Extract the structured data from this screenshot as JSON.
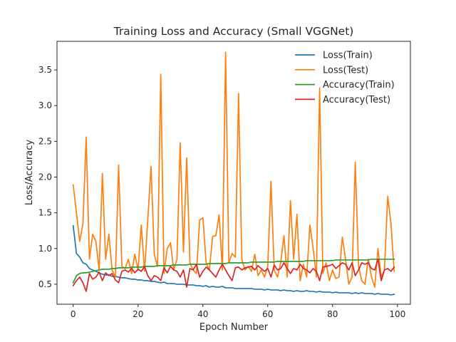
{
  "chart_data": {
    "type": "line",
    "title": "Training Loss and Accuracy (Small VGGNet)",
    "xlabel": "Epoch Number",
    "ylabel": "Loss/Accuracy",
    "xlim": [
      -5,
      104
    ],
    "ylim": [
      0.22,
      3.9
    ],
    "xticks": [
      0,
      20,
      40,
      60,
      80,
      100
    ],
    "yticks": [
      0.5,
      1.0,
      1.5,
      2.0,
      2.5,
      3.0,
      3.5
    ],
    "grid": false,
    "legend_position": "top-right",
    "x": [
      0,
      1,
      2,
      3,
      4,
      5,
      6,
      7,
      8,
      9,
      10,
      11,
      12,
      13,
      14,
      15,
      16,
      17,
      18,
      19,
      20,
      21,
      22,
      23,
      24,
      25,
      26,
      27,
      28,
      29,
      30,
      31,
      32,
      33,
      34,
      35,
      36,
      37,
      38,
      39,
      40,
      41,
      42,
      43,
      44,
      45,
      46,
      47,
      48,
      49,
      50,
      51,
      52,
      53,
      54,
      55,
      56,
      57,
      58,
      59,
      60,
      61,
      62,
      63,
      64,
      65,
      66,
      67,
      68,
      69,
      70,
      71,
      72,
      73,
      74,
      75,
      76,
      77,
      78,
      79,
      80,
      81,
      82,
      83,
      84,
      85,
      86,
      87,
      88,
      89,
      90,
      91,
      92,
      93,
      94,
      95,
      96,
      97,
      98,
      99
    ],
    "series": [
      {
        "name": "Loss(Train)",
        "color": "#1f77b4",
        "values": [
          1.32,
          0.93,
          0.88,
          0.8,
          0.78,
          0.72,
          0.7,
          0.68,
          0.66,
          0.64,
          0.63,
          0.63,
          0.61,
          0.61,
          0.6,
          0.59,
          0.59,
          0.58,
          0.57,
          0.57,
          0.56,
          0.56,
          0.55,
          0.55,
          0.54,
          0.54,
          0.53,
          0.52,
          0.53,
          0.51,
          0.51,
          0.51,
          0.5,
          0.5,
          0.5,
          0.49,
          0.49,
          0.49,
          0.48,
          0.48,
          0.47,
          0.48,
          0.46,
          0.47,
          0.46,
          0.46,
          0.47,
          0.45,
          0.45,
          0.45,
          0.44,
          0.44,
          0.44,
          0.44,
          0.44,
          0.44,
          0.43,
          0.43,
          0.43,
          0.42,
          0.43,
          0.42,
          0.42,
          0.42,
          0.41,
          0.42,
          0.41,
          0.41,
          0.4,
          0.41,
          0.4,
          0.4,
          0.41,
          0.4,
          0.4,
          0.39,
          0.4,
          0.39,
          0.39,
          0.39,
          0.38,
          0.39,
          0.38,
          0.38,
          0.38,
          0.38,
          0.37,
          0.38,
          0.37,
          0.38,
          0.37,
          0.37,
          0.37,
          0.36,
          0.37,
          0.36,
          0.36,
          0.36,
          0.35,
          0.36
        ]
      },
      {
        "name": "Loss(Test)",
        "color": "#ff7f0e",
        "values": [
          1.89,
          1.5,
          1.1,
          1.35,
          2.56,
          0.85,
          1.2,
          1.1,
          0.7,
          2.05,
          0.85,
          1.2,
          0.7,
          0.6,
          2.17,
          0.75,
          0.72,
          0.85,
          0.65,
          0.92,
          0.7,
          1.33,
          0.68,
          1.4,
          2.15,
          0.92,
          0.75,
          3.44,
          0.65,
          1.0,
          1.08,
          0.7,
          0.85,
          2.48,
          0.95,
          2.27,
          0.8,
          0.7,
          0.65,
          1.4,
          1.43,
          0.8,
          0.7,
          1.17,
          1.18,
          1.47,
          0.7,
          3.75,
          0.8,
          0.93,
          0.88,
          3.17,
          0.85,
          0.7,
          0.75,
          0.68,
          0.92,
          0.62,
          0.7,
          0.6,
          0.75,
          1.94,
          0.7,
          0.6,
          0.8,
          1.18,
          0.6,
          1.67,
          0.85,
          1.48,
          0.55,
          0.78,
          0.6,
          1.33,
          1.0,
          0.6,
          3.25,
          0.65,
          0.8,
          0.55,
          0.7,
          0.58,
          0.6,
          1.16,
          0.85,
          0.5,
          0.6,
          2.21,
          0.75,
          0.55,
          0.5,
          0.85,
          0.6,
          0.46,
          1.0,
          0.6,
          0.7,
          1.73,
          1.35,
          0.68
        ]
      },
      {
        "name": "Accuracy(Train)",
        "color": "#2ca02c",
        "values": [
          0.52,
          0.62,
          0.65,
          0.66,
          0.66,
          0.67,
          0.68,
          0.69,
          0.7,
          0.71,
          0.71,
          0.71,
          0.72,
          0.72,
          0.73,
          0.73,
          0.73,
          0.73,
          0.74,
          0.74,
          0.74,
          0.74,
          0.75,
          0.75,
          0.75,
          0.75,
          0.76,
          0.76,
          0.76,
          0.76,
          0.76,
          0.77,
          0.77,
          0.77,
          0.77,
          0.77,
          0.78,
          0.78,
          0.78,
          0.78,
          0.78,
          0.78,
          0.79,
          0.79,
          0.79,
          0.79,
          0.79,
          0.79,
          0.8,
          0.8,
          0.8,
          0.8,
          0.8,
          0.8,
          0.8,
          0.81,
          0.81,
          0.81,
          0.81,
          0.81,
          0.81,
          0.81,
          0.81,
          0.82,
          0.82,
          0.82,
          0.82,
          0.82,
          0.82,
          0.82,
          0.82,
          0.82,
          0.83,
          0.83,
          0.83,
          0.83,
          0.83,
          0.83,
          0.83,
          0.83,
          0.83,
          0.84,
          0.84,
          0.84,
          0.84,
          0.84,
          0.84,
          0.84,
          0.84,
          0.84,
          0.84,
          0.84,
          0.85,
          0.85,
          0.85,
          0.85,
          0.85,
          0.85,
          0.85,
          0.85
        ]
      },
      {
        "name": "Accuracy(Test)",
        "color": "#d62728",
        "values": [
          0.48,
          0.55,
          0.6,
          0.52,
          0.4,
          0.65,
          0.57,
          0.6,
          0.67,
          0.55,
          0.66,
          0.62,
          0.65,
          0.56,
          0.52,
          0.68,
          0.7,
          0.67,
          0.72,
          0.66,
          0.71,
          0.68,
          0.75,
          0.62,
          0.55,
          0.62,
          0.6,
          0.55,
          0.73,
          0.66,
          0.75,
          0.7,
          0.68,
          0.6,
          0.7,
          0.46,
          0.72,
          0.7,
          0.78,
          0.6,
          0.68,
          0.74,
          0.7,
          0.65,
          0.6,
          0.7,
          0.78,
          0.7,
          0.62,
          0.55,
          0.73,
          0.74,
          0.7,
          0.73,
          0.74,
          0.75,
          0.7,
          0.76,
          0.72,
          0.68,
          0.72,
          0.6,
          0.77,
          0.7,
          0.72,
          0.8,
          0.72,
          0.65,
          0.72,
          0.7,
          0.78,
          0.72,
          0.7,
          0.66,
          0.72,
          0.68,
          0.55,
          0.74,
          0.75,
          0.76,
          0.78,
          0.72,
          0.76,
          0.8,
          0.78,
          0.7,
          0.8,
          0.62,
          0.7,
          0.8,
          0.78,
          0.8,
          0.72,
          0.7,
          0.85,
          0.55,
          0.7,
          0.72,
          0.68,
          0.74
        ]
      }
    ]
  }
}
